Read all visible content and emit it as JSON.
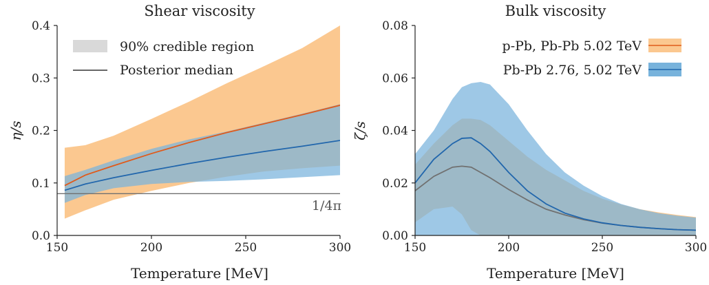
{
  "colors": {
    "orange_band": "#fbc890",
    "orange_line": "#e05a1a",
    "blue_band": "#78b3dc",
    "blue_line": "#2166ac",
    "overlap": "#8fa7b0",
    "gray_line": "#707070",
    "legend_gray": "#d9d9d9",
    "dark_line": "#333333"
  },
  "chart_data": [
    {
      "type": "area",
      "title": "Shear viscosity",
      "xlabel": "Temperature [MeV]",
      "ylabel": "η/s",
      "xlim": [
        150,
        300
      ],
      "ylim": [
        0.0,
        0.4
      ],
      "xticks": [
        "150",
        "200",
        "250",
        "300"
      ],
      "yticks": [
        "0.0",
        "0.1",
        "0.2",
        "0.3",
        "0.4"
      ],
      "legend_position": "upper-left",
      "legend": [
        {
          "label": "90% credible region",
          "kind": "band"
        },
        {
          "label": "Posterior median",
          "kind": "line"
        }
      ],
      "reference_line": {
        "y": 0.0796,
        "label": "1/4π"
      },
      "x": [
        154,
        165,
        180,
        200,
        220,
        240,
        260,
        280,
        300
      ],
      "series": [
        {
          "color_key": "orange",
          "lower": [
            0.032,
            0.048,
            0.068,
            0.085,
            0.1,
            0.112,
            0.122,
            0.128,
            0.133
          ],
          "upper": [
            0.167,
            0.172,
            0.19,
            0.222,
            0.255,
            0.29,
            0.323,
            0.357,
            0.4
          ],
          "median": [
            0.095,
            0.115,
            0.133,
            0.156,
            0.177,
            0.196,
            0.213,
            0.23,
            0.248
          ]
        },
        {
          "color_key": "blue",
          "lower": [
            0.062,
            0.077,
            0.09,
            0.098,
            0.102,
            0.104,
            0.107,
            0.111,
            0.115
          ],
          "upper": [
            0.113,
            0.125,
            0.143,
            0.165,
            0.183,
            0.198,
            0.215,
            0.232,
            0.25
          ],
          "median": [
            0.086,
            0.098,
            0.11,
            0.124,
            0.137,
            0.149,
            0.16,
            0.17,
            0.181
          ]
        }
      ]
    },
    {
      "type": "area",
      "title": "Bulk viscosity",
      "xlabel": "Temperature [MeV]",
      "ylabel": "ζ/s",
      "xlim": [
        150,
        300
      ],
      "ylim": [
        0.0,
        0.08
      ],
      "xticks": [
        "150",
        "200",
        "250",
        "300"
      ],
      "yticks": [
        "0.00",
        "0.02",
        "0.04",
        "0.06",
        "0.08"
      ],
      "legend_position": "upper-right",
      "legend": [
        {
          "label": "p-Pb, Pb-Pb 5.02 TeV",
          "color_key": "orange"
        },
        {
          "label": "Pb-Pb 2.76, 5.02 TeV",
          "color_key": "blue"
        }
      ],
      "x": [
        150,
        160,
        170,
        175,
        180,
        185,
        190,
        200,
        210,
        220,
        230,
        240,
        250,
        260,
        270,
        280,
        290,
        300
      ],
      "series": [
        {
          "color_key": "orange",
          "lower": [
            0.005,
            0.01,
            0.011,
            0.008,
            0.002,
            0.0,
            0.0,
            0.0,
            0.0,
            0.0,
            0.0,
            0.0,
            0.0,
            0.0,
            0.0,
            0.0,
            0.0,
            0.0
          ],
          "upper": [
            0.027,
            0.035,
            0.042,
            0.0445,
            0.0445,
            0.044,
            0.042,
            0.036,
            0.03,
            0.025,
            0.021,
            0.017,
            0.014,
            0.0118,
            0.01,
            0.0088,
            0.0078,
            0.007
          ],
          "median": [
            0.017,
            0.0225,
            0.026,
            0.0264,
            0.026,
            0.024,
            0.022,
            0.0175,
            0.0135,
            0.01,
            0.0078,
            0.006,
            0.0047,
            0.0038,
            0.0031,
            0.0026,
            0.0022,
            0.002
          ]
        },
        {
          "color_key": "blue",
          "lower": [
            0.0,
            0.0,
            0.0,
            0.0,
            0.0,
            0.0,
            0.0,
            0.0,
            0.0,
            0.0,
            0.0,
            0.0,
            0.0,
            0.0,
            0.0,
            0.0,
            0.0,
            0.0
          ],
          "upper": [
            0.031,
            0.04,
            0.052,
            0.0565,
            0.058,
            0.0585,
            0.0575,
            0.05,
            0.04,
            0.031,
            0.024,
            0.019,
            0.015,
            0.012,
            0.01,
            0.0085,
            0.0075,
            0.0068
          ],
          "median": [
            0.02,
            0.029,
            0.035,
            0.037,
            0.0372,
            0.035,
            0.032,
            0.024,
            0.017,
            0.012,
            0.0085,
            0.0063,
            0.0048,
            0.0038,
            0.0031,
            0.0026,
            0.0022,
            0.002
          ]
        }
      ]
    }
  ]
}
